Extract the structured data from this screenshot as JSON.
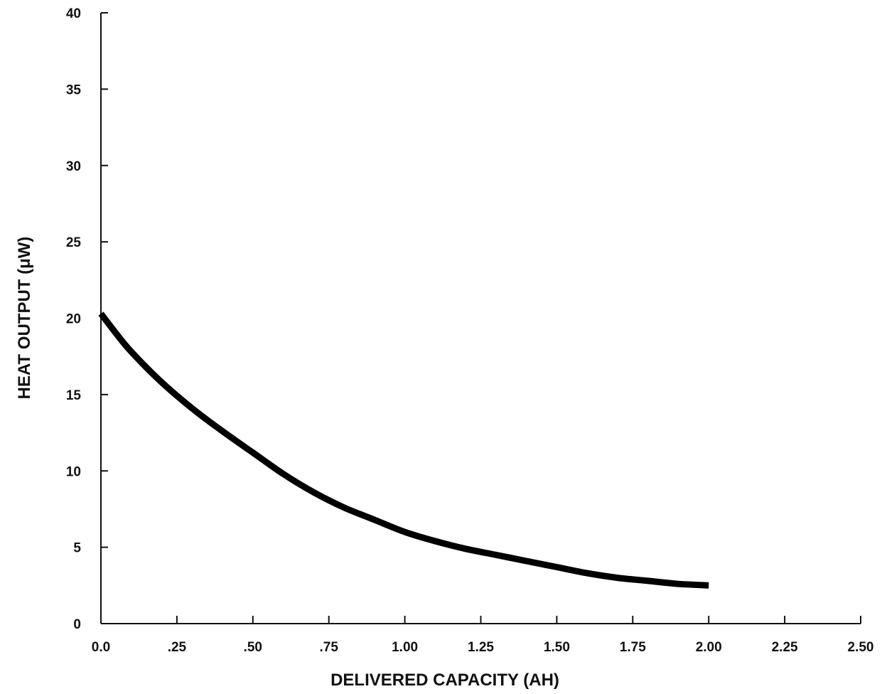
{
  "chart_data": {
    "type": "line",
    "title": "",
    "xlabel": "DELIVERED CAPACITY (AH)",
    "ylabel": "HEAT OUTPUT (μW)",
    "xlim": [
      0,
      2.5
    ],
    "ylim": [
      0,
      40
    ],
    "x_ticks": [
      0,
      0.25,
      0.5,
      0.75,
      1.0,
      1.25,
      1.5,
      1.75,
      2.0,
      2.25,
      2.5
    ],
    "x_tick_labels": [
      "0.0",
      ".25",
      ".50",
      ".75",
      "1.00",
      "1.25",
      "1.50",
      "1.75",
      "2.00",
      "2.25",
      "2.50"
    ],
    "y_ticks": [
      0,
      5,
      10,
      15,
      20,
      25,
      30,
      35,
      40
    ],
    "y_tick_labels": [
      "0",
      "5",
      "10",
      "15",
      "20",
      "25",
      "30",
      "35",
      "40"
    ],
    "grid": false,
    "legend": "none",
    "series": [
      {
        "x": [
          0.0,
          0.05,
          0.1,
          0.2,
          0.3,
          0.4,
          0.5,
          0.6,
          0.7,
          0.8,
          0.9,
          1.0,
          1.1,
          1.2,
          1.3,
          1.4,
          1.5,
          1.6,
          1.7,
          1.8,
          1.9,
          2.0
        ],
        "y": [
          20.3,
          19.0,
          17.8,
          15.8,
          14.1,
          12.6,
          11.2,
          9.8,
          8.6,
          7.6,
          6.8,
          6.0,
          5.4,
          4.9,
          4.5,
          4.1,
          3.7,
          3.3,
          3.0,
          2.8,
          2.6,
          2.5
        ]
      }
    ]
  }
}
